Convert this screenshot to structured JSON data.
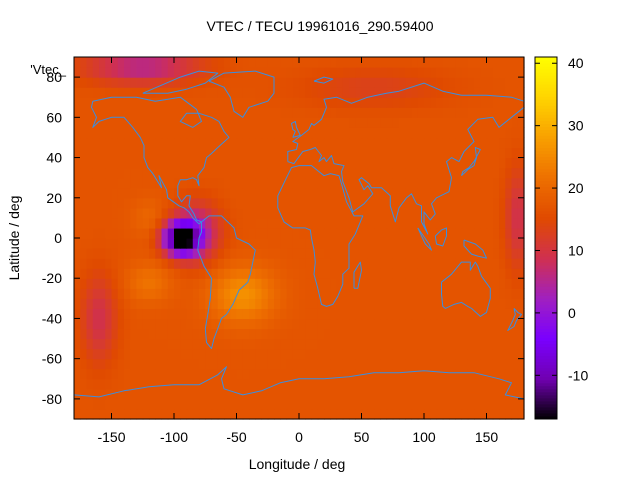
{
  "chart_data": {
    "type": "heatmap",
    "title": "VTEC / TECU 19961016_290.59400",
    "xlabel": "Longitude / deg",
    "ylabel": "Latitude / deg",
    "key_label": "'Vtec_",
    "xlim": [
      -180,
      180
    ],
    "ylim": [
      -90,
      90
    ],
    "clim": [
      -17,
      41
    ],
    "x_ticks": [
      -150,
      -100,
      -50,
      0,
      50,
      100,
      150
    ],
    "y_ticks": [
      -80,
      -60,
      -40,
      -20,
      0,
      20,
      40,
      60,
      80
    ],
    "colorbar_ticks": [
      -10,
      0,
      10,
      20,
      30,
      40
    ],
    "palette": [
      "#000000",
      "#7000b0",
      "#7a00ff",
      "#a020c0",
      "#d03050",
      "#e04a00",
      "#ee7000",
      "#f8a000",
      "#ffd400",
      "#ffff00"
    ],
    "coastline_color": "#3a8ee0",
    "background_level": 17,
    "features": [
      {
        "lon": -95,
        "lat": 0,
        "sigma_lon": 14,
        "sigma_lat": 8,
        "amplitude": -33
      },
      {
        "lon": -82,
        "lat": 3,
        "sigma_lon": 18,
        "sigma_lat": 14,
        "amplitude": -14
      },
      {
        "lon": -45,
        "lat": -28,
        "sigma_lon": 26,
        "sigma_lat": 14,
        "amplitude": 9
      },
      {
        "lon": -120,
        "lat": -22,
        "sigma_lon": 18,
        "sigma_lat": 10,
        "amplitude": 5
      },
      {
        "lon": -120,
        "lat": 10,
        "sigma_lon": 14,
        "sigma_lat": 10,
        "amplitude": 3
      },
      {
        "lon": -125,
        "lat": 85,
        "sigma_lon": 45,
        "sigma_lat": 8,
        "amplitude": -12
      },
      {
        "lon": -160,
        "lat": -40,
        "sigma_lon": 14,
        "sigma_lat": 22,
        "amplitude": -8
      },
      {
        "lon": 175,
        "lat": 10,
        "sigma_lon": 10,
        "sigma_lat": 25,
        "amplitude": -8
      },
      {
        "lon": 60,
        "lat": 75,
        "sigma_lon": 60,
        "sigma_lat": 10,
        "amplitude": -4
      }
    ]
  }
}
